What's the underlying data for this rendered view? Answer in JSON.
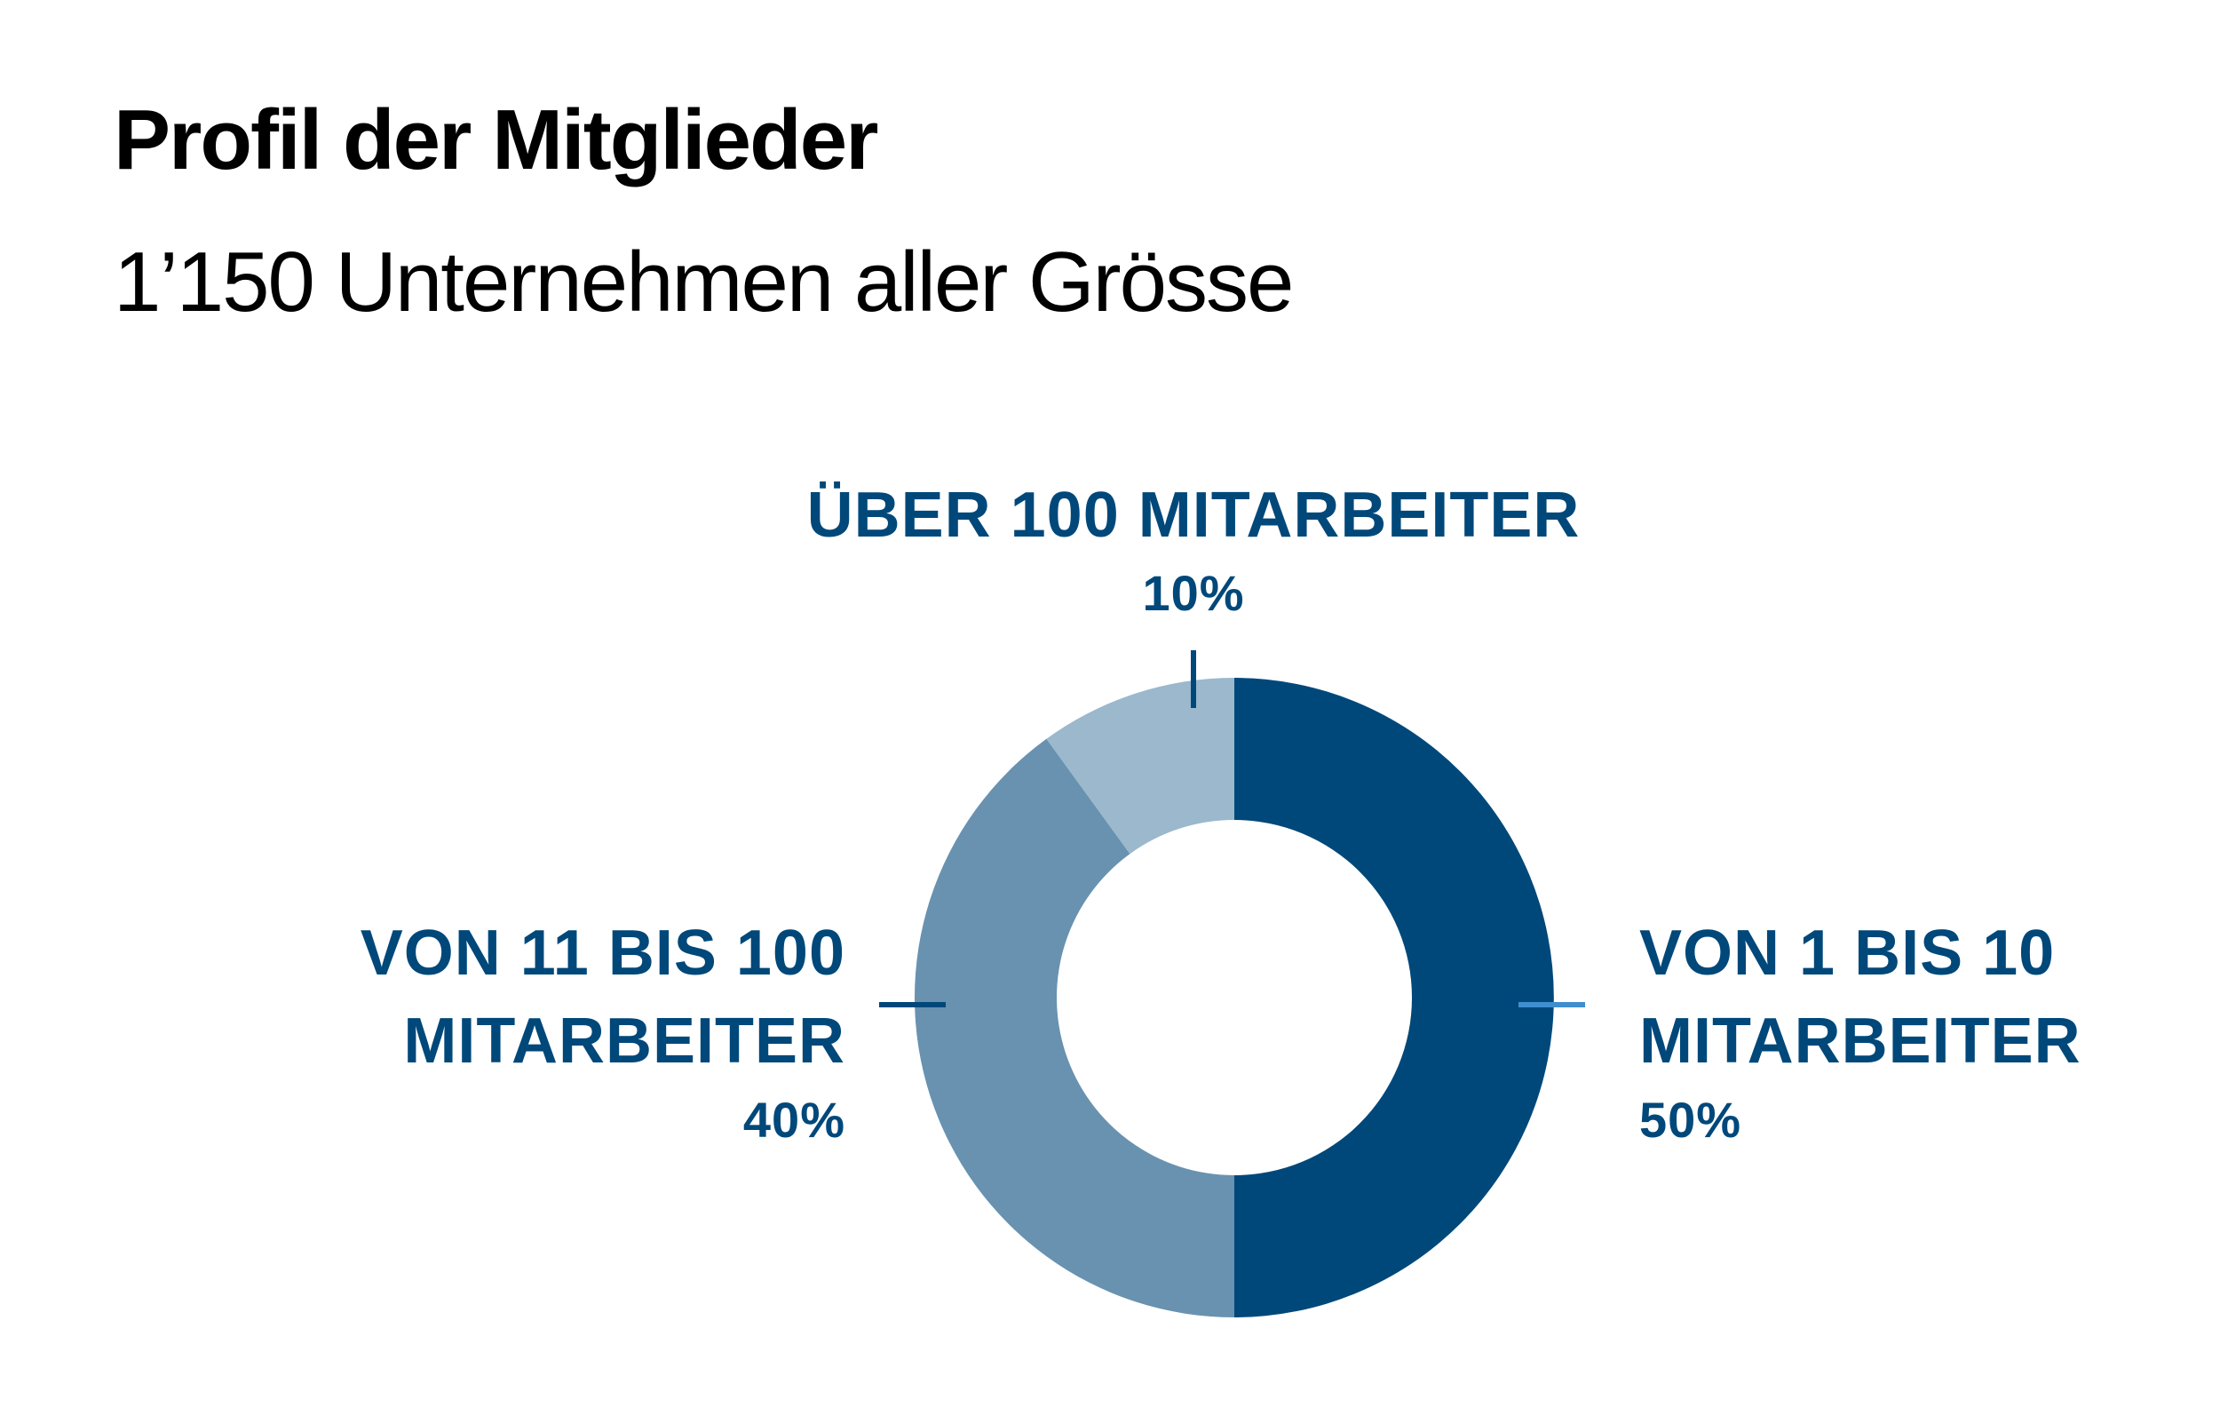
{
  "title": "Profil der Mitglieder",
  "subtitle": "1’150 Unternehmen aller Grösse",
  "chart_data": {
    "type": "pie",
    "donut": true,
    "slices": [
      {
        "line1": "VON 1 BIS 10",
        "line2": "MITARBEITER",
        "percent_label": "50%",
        "value": 50,
        "color": "#00487a"
      },
      {
        "line1": "VON 11 BIS 100",
        "line2": "MITARBEITER",
        "percent_label": "40%",
        "value": 40,
        "color": "#6892b0"
      },
      {
        "line1": "ÜBER 100 MITARBEITER",
        "percent_label": "10%",
        "value": 10,
        "color": "#9bb8cc"
      }
    ],
    "label_color": "#00487a",
    "leader_color_right": "#3f8fd0"
  }
}
